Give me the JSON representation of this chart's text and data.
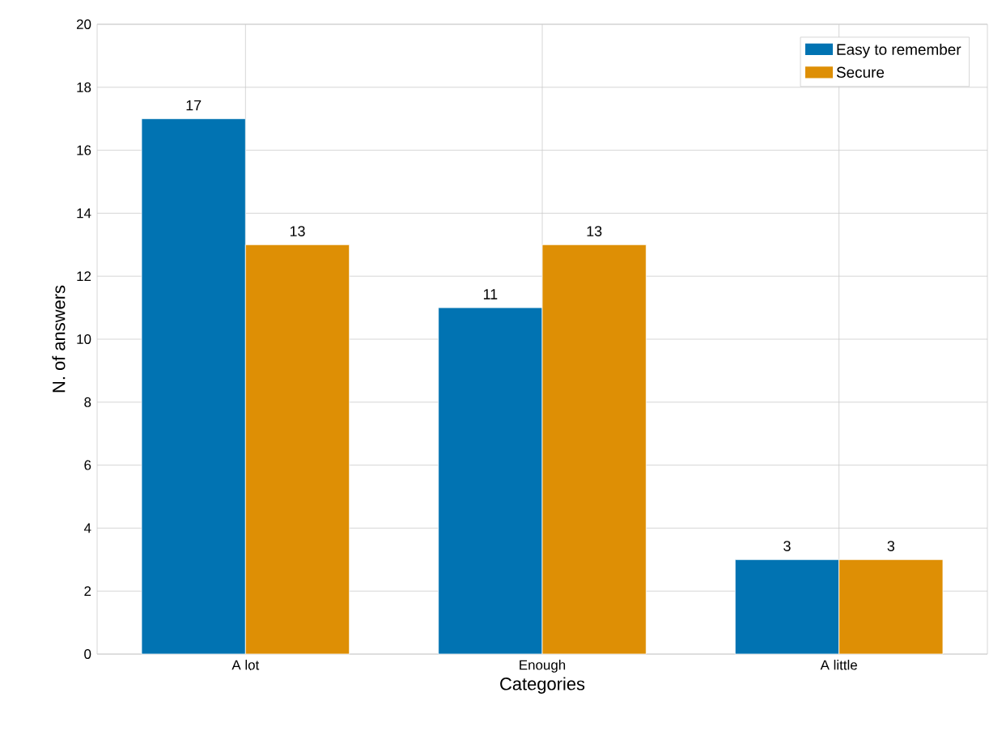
{
  "chart_data": {
    "type": "bar",
    "xlabel": "Categories",
    "ylabel": "N. of answers",
    "categories": [
      "A lot",
      "Enough",
      "A little"
    ],
    "series": [
      {
        "name": "Easy to remember",
        "color": "#0173b2",
        "values": [
          17,
          11,
          3
        ]
      },
      {
        "name": "Secure",
        "color": "#de8f05",
        "values": [
          13,
          13,
          3
        ]
      }
    ],
    "ylim": [
      0,
      20
    ],
    "yticks": [
      0,
      2,
      4,
      6,
      8,
      10,
      12,
      14,
      16,
      18,
      20
    ],
    "grid": true,
    "legend": "top right",
    "data_labels": true
  }
}
